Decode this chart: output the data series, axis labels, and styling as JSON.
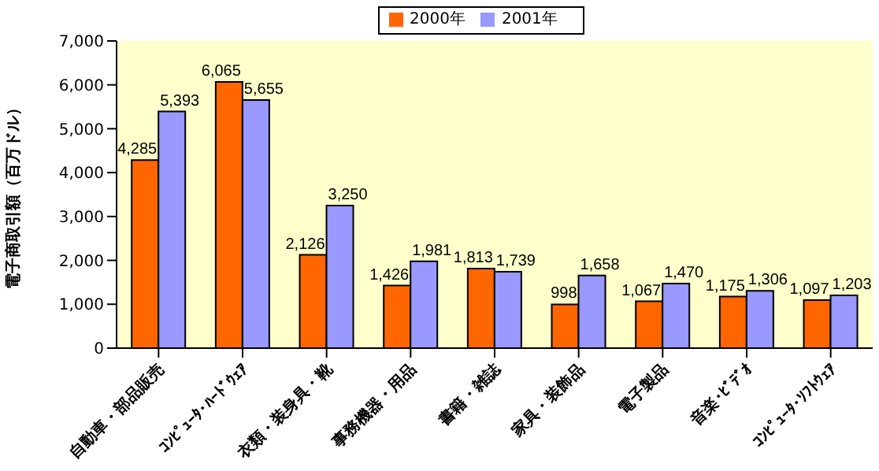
{
  "chart_data": {
    "type": "bar",
    "ylabel": "電子商取引額（百万ドル）",
    "categories": [
      "自動車・部品販売",
      "ｺﾝﾋﾟｭｰﾀ･ﾊｰﾄﾞｳｪｱ",
      "衣類・装身具・靴",
      "事務機器・用品",
      "書籍・雑誌",
      "家具・装飾品",
      "電子製品",
      "音楽･ﾋﾞﾃﾞｵ",
      "ｺﾝﾋﾟｭｰﾀ･ｿﾌﾄｳｪｱ"
    ],
    "series": [
      {
        "name": "2000年",
        "color": "#ff6600",
        "values": [
          4285,
          6065,
          2126,
          1426,
          1813,
          998,
          1067,
          1175,
          1097
        ],
        "value_labels": [
          "4,285",
          "6,065",
          "2,126",
          "1,426",
          "1,813",
          "998",
          "1,067",
          "1,175",
          "1,097"
        ]
      },
      {
        "name": "2001年",
        "color": "#9999ff",
        "values": [
          5393,
          5655,
          3250,
          1981,
          1739,
          1658,
          1470,
          1306,
          1203
        ],
        "value_labels": [
          "5,393",
          "5,655",
          "3,250",
          "1,981",
          "1,739",
          "1,658",
          "1,470",
          "1,306",
          "1,203"
        ]
      }
    ],
    "ylim": [
      0,
      7000
    ],
    "yticks": [
      {
        "value": 0,
        "label": "0"
      },
      {
        "value": 1000,
        "label": "1,000"
      },
      {
        "value": 2000,
        "label": "2,000"
      },
      {
        "value": 3000,
        "label": "3,000"
      },
      {
        "value": 4000,
        "label": "4,000"
      },
      {
        "value": 5000,
        "label": "5,000"
      },
      {
        "value": 6000,
        "label": "6,000"
      },
      {
        "value": 7000,
        "label": "7,000"
      }
    ],
    "grid": false,
    "legend": "top"
  }
}
